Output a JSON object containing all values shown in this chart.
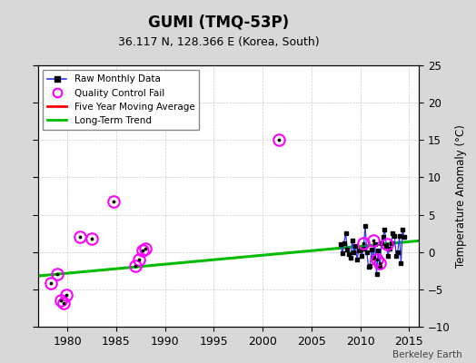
{
  "title": "GUMI (TMQ-53P)",
  "subtitle": "36.117 N, 128.366 E (Korea, South)",
  "ylabel_right": "Temperature Anomaly (°C)",
  "watermark": "Berkeley Earth",
  "xlim": [
    1977,
    2016
  ],
  "ylim": [
    -10,
    25
  ],
  "yticks": [
    -10,
    -5,
    0,
    5,
    10,
    15,
    20,
    25
  ],
  "xticks": [
    1980,
    1985,
    1990,
    1995,
    2000,
    2005,
    2010,
    2015
  ],
  "bg_color": "#d8d8d8",
  "plot_bg_color": "#ffffff",
  "raw_monthly_x": [
    2008.0,
    2008.17,
    2008.33,
    2008.5,
    2008.67,
    2008.83,
    2009.0,
    2009.17,
    2009.33,
    2009.5,
    2009.67,
    2009.83,
    2010.0,
    2010.17,
    2010.33,
    2010.5,
    2010.67,
    2010.83,
    2011.0,
    2011.17,
    2011.33,
    2011.5,
    2011.67,
    2011.83,
    2012.0,
    2012.17,
    2012.33,
    2012.5,
    2012.67,
    2012.83,
    2013.0,
    2013.17,
    2013.33,
    2013.5,
    2013.67,
    2013.83,
    2014.0,
    2014.17,
    2014.33,
    2014.5
  ],
  "raw_monthly_y": [
    1.0,
    -0.2,
    1.2,
    2.5,
    0.3,
    -0.3,
    -0.8,
    1.5,
    0.0,
    0.8,
    -1.0,
    0.2,
    0.3,
    -0.5,
    0.5,
    3.5,
    0.0,
    -2.0,
    -1.8,
    0.3,
    -0.8,
    1.0,
    -3.0,
    0.2,
    -2.0,
    1.2,
    2.0,
    3.0,
    0.8,
    -0.5,
    0.5,
    1.2,
    2.5,
    2.2,
    -0.5,
    0.0,
    2.2,
    -1.5,
    3.0,
    2.0
  ],
  "qc_fail_x": [
    1978.3,
    1979.0,
    1979.3,
    1979.6,
    1979.9,
    1981.3,
    1982.5,
    1984.7,
    1987.0,
    1987.3,
    1987.7,
    1988.0,
    2001.7,
    2010.3,
    2011.3,
    2011.7,
    2012.0,
    2012.7
  ],
  "qc_fail_y": [
    -4.2,
    -3.0,
    -6.5,
    -6.8,
    -5.8,
    2.0,
    1.8,
    6.8,
    -1.8,
    -1.0,
    0.2,
    0.5,
    15.0,
    1.2,
    1.5,
    -1.0,
    -1.5,
    1.0
  ],
  "trend_x": [
    1977,
    2016
  ],
  "trend_y": [
    -3.2,
    1.5
  ],
  "grid_color": "#cccccc",
  "raw_line_color": "#3333ff",
  "raw_marker_color": "#000000",
  "qc_color": "#ff00ff",
  "trend_color": "#00bb00",
  "mavg_color": "#ff0000"
}
